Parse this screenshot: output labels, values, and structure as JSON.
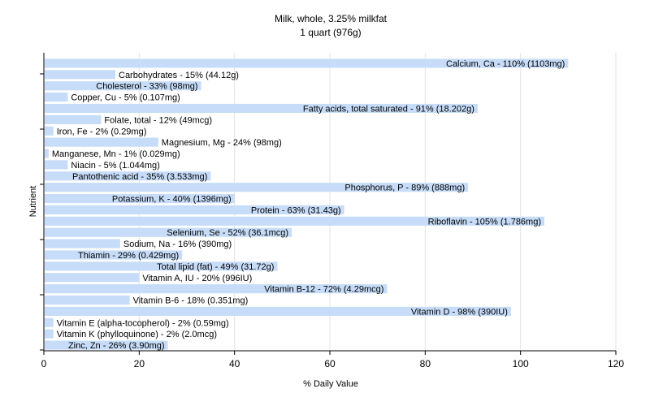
{
  "chart_data": {
    "type": "bar",
    "orientation": "horizontal",
    "title": "Milk, whole, 3.25% milkfat",
    "subtitle": "1 quart (976g)",
    "xlabel": "% Daily Value",
    "ylabel": "Nutrient",
    "xlim": [
      0,
      120
    ],
    "xticks": [
      0,
      20,
      40,
      60,
      80,
      100,
      120
    ],
    "grid": true,
    "bar_color": "#c6dcf8",
    "grid_color": "#e3e3e3",
    "categories": [
      "Calcium, Ca",
      "Carbohydrates",
      "Cholesterol",
      "Copper, Cu",
      "Fatty acids, total saturated",
      "Folate, total",
      "Iron, Fe",
      "Magnesium, Mg",
      "Manganese, Mn",
      "Niacin",
      "Pantothenic acid",
      "Phosphorus, P",
      "Potassium, K",
      "Protein",
      "Riboflavin",
      "Selenium, Se",
      "Sodium, Na",
      "Thiamin",
      "Total lipid (fat)",
      "Vitamin A, IU",
      "Vitamin B-12",
      "Vitamin B-6",
      "Vitamin D",
      "Vitamin E (alpha-tocopherol)",
      "Vitamin K (phylloquinone)",
      "Zinc, Zn"
    ],
    "values": [
      110,
      15,
      33,
      5,
      91,
      12,
      2,
      24,
      1,
      5,
      35,
      89,
      40,
      63,
      105,
      52,
      16,
      29,
      49,
      20,
      72,
      18,
      98,
      2,
      2,
      26
    ],
    "labels": [
      "Calcium, Ca - 110% (1103mg)",
      "Carbohydrates - 15% (44.12g)",
      "Cholesterol - 33% (98mg)",
      "Copper, Cu - 5% (0.107mg)",
      "Fatty acids, total saturated - 91% (18.202g)",
      "Folate, total - 12% (49mcg)",
      "Iron, Fe - 2% (0.29mg)",
      "Magnesium, Mg - 24% (98mg)",
      "Manganese, Mn - 1% (0.029mg)",
      "Niacin - 5% (1.044mg)",
      "Pantothenic acid - 35% (3.533mg)",
      "Phosphorus, P - 89% (888mg)",
      "Potassium, K - 40% (1396mg)",
      "Protein - 63% (31.43g)",
      "Riboflavin - 105% (1.786mg)",
      "Selenium, Se - 52% (36.1mcg)",
      "Sodium, Na - 16% (390mg)",
      "Thiamin - 29% (0.429mg)",
      "Total lipid (fat) - 49% (31.72g)",
      "Vitamin A, IU - 20% (996IU)",
      "Vitamin B-12 - 72% (4.29mcg)",
      "Vitamin B-6 - 18% (0.351mg)",
      "Vitamin D - 98% (390IU)",
      "Vitamin E (alpha-tocopherol) - 2% (0.59mg)",
      "Vitamin K (phylloquinone) - 2% (2.0mcg)",
      "Zinc, Zn - 26% (3.90mg)"
    ]
  }
}
